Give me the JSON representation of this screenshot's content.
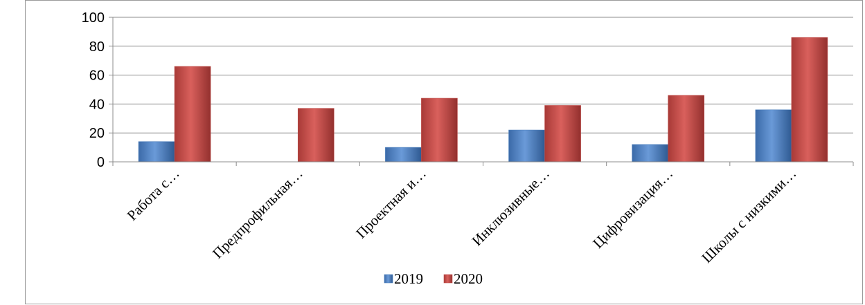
{
  "chart_data": {
    "type": "bar",
    "categories": [
      "Работа с…",
      "Предпрофильная…",
      "Проектная и…",
      "Инклюзивные…",
      "Цифровизация…",
      "Школы с низкими…"
    ],
    "series": [
      {
        "name": "2019",
        "values": [
          14,
          0,
          10,
          22,
          12,
          36
        ],
        "color": "#4a7ebb"
      },
      {
        "name": "2020",
        "values": [
          66,
          37,
          44,
          39,
          46,
          86
        ],
        "color": "#be4b48"
      }
    ],
    "ylim": [
      0,
      100
    ],
    "yticks": [
      0,
      20,
      40,
      60,
      80,
      100
    ],
    "grid": true,
    "legend": "bottom"
  }
}
